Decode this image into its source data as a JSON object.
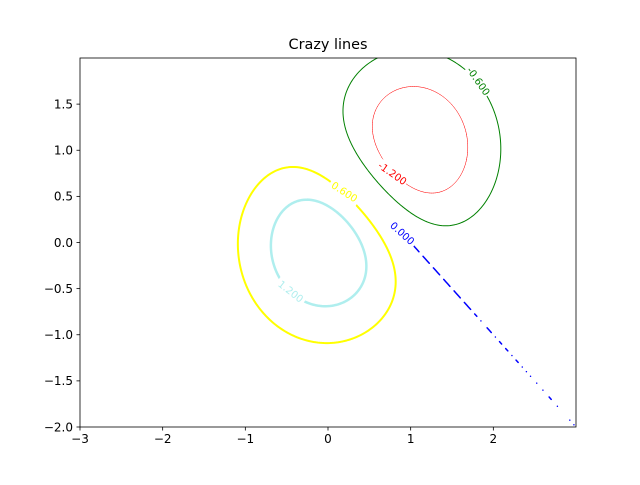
{
  "chart_data": {
    "type": "contour",
    "title": "Crazy lines",
    "xlabel": "",
    "ylabel": "",
    "xlim": [
      -3,
      3
    ],
    "ylim": [
      -2,
      2
    ],
    "xticks": [
      -3,
      -2,
      -1,
      0,
      1,
      2
    ],
    "xtick_labels": [
      "−3",
      "−2",
      "−1",
      "0",
      "1",
      "2"
    ],
    "yticks": [
      -2.0,
      -1.5,
      -1.0,
      -0.5,
      0.0,
      0.5,
      1.0,
      1.5
    ],
    "ytick_labels": [
      "−2.0",
      "−1.5",
      "−1.0",
      "−0.5",
      "0.0",
      "0.5",
      "1.0",
      "1.5"
    ],
    "grid": false,
    "contour_levels": [
      {
        "level": -1.2,
        "label": "-1.200",
        "color": "#ff0000",
        "linewidth": 0.5
      },
      {
        "level": -0.6,
        "label": "-0.600",
        "color": "#008000",
        "linewidth": 1
      },
      {
        "level": 0.0,
        "label": "0.000",
        "color": "#0000ff",
        "linewidth": 1.5
      },
      {
        "level": 0.6,
        "label": "0.600",
        "color": "#ffff00",
        "linewidth": 2
      },
      {
        "level": 1.2,
        "label": "1.200",
        "color": "#afeeee",
        "linewidth": 2.5
      }
    ]
  }
}
